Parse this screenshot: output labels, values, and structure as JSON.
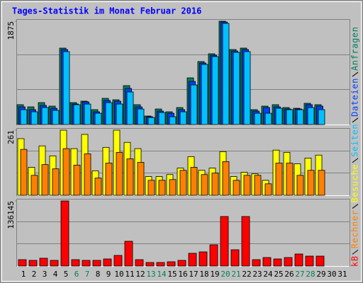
{
  "chart_data": [
    {
      "type": "bar",
      "title": "Tages-Statistik im Monat Februar 2016",
      "categories": [
        "1",
        "2",
        "3",
        "4",
        "5",
        "6",
        "7",
        "8",
        "9",
        "10",
        "11",
        "12",
        "13",
        "14",
        "15",
        "16",
        "17",
        "18",
        "19",
        "20",
        "21",
        "22",
        "23",
        "24",
        "25",
        "26",
        "27",
        "28",
        "29",
        "30",
        "31"
      ],
      "category_colors": [
        "#000000",
        "#000000",
        "#000000",
        "#000000",
        "#000000",
        "#00805c",
        "#00805c",
        "#000000",
        "#000000",
        "#000000",
        "#000000",
        "#000000",
        "#00805c",
        "#00805c",
        "#000000",
        "#000000",
        "#000000",
        "#000000",
        "#000000",
        "#00805c",
        "#00805c",
        "#000000",
        "#000000",
        "#000000",
        "#000000",
        "#000000",
        "#00805c",
        "#00805c",
        "#000000",
        "#000000",
        "#000000"
      ],
      "ylim": [
        0,
        1875
      ],
      "yticks": [
        1875
      ],
      "series": [
        {
          "name": "Anfragen",
          "color": "#00805c",
          "values": [
            360,
            321,
            398,
            334,
            1387,
            398,
            424,
            270,
            475,
            449,
            706,
            360,
            154,
            282,
            231,
            308,
            847,
            1143,
            1284,
            1875,
            1361,
            1387,
            270,
            334,
            360,
            308,
            295,
            385,
            360,
            0,
            0
          ]
        },
        {
          "name": "Dateien",
          "color": "#0040ff",
          "values": [
            321,
            270,
            347,
            295,
            1361,
            372,
            411,
            231,
            437,
            424,
            655,
            321,
            141,
            244,
            205,
            270,
            783,
            1117,
            1258,
            1862,
            1335,
            1361,
            244,
            308,
            321,
            282,
            282,
            360,
            334,
            0,
            0
          ]
        },
        {
          "name": "Seiten",
          "color": "#00c0ff",
          "values": [
            270,
            231,
            308,
            257,
            1323,
            360,
            372,
            205,
            398,
            372,
            591,
            282,
            128,
            218,
            141,
            231,
            719,
            1091,
            1233,
            1836,
            1310,
            1323,
            205,
            205,
            295,
            270,
            270,
            308,
            270,
            0,
            0
          ]
        }
      ]
    },
    {
      "type": "bar",
      "ylim": [
        0,
        261
      ],
      "yticks": [
        261
      ],
      "series": [
        {
          "name": "Besuche",
          "color": "#ffff00",
          "values": [
            227,
            112,
            198,
            158,
            261,
            187,
            244,
            98,
            192,
            261,
            212,
            187,
            75,
            75,
            83,
            109,
            155,
            100,
            109,
            175,
            75,
            92,
            86,
            60,
            181,
            172,
            126,
            149,
            161,
            0,
            0
          ]
        },
        {
          "name": "Rechner",
          "color": "#ff8000",
          "values": [
            184,
            80,
            123,
            106,
            187,
            121,
            166,
            69,
            129,
            172,
            146,
            132,
            60,
            60,
            63,
            100,
            112,
            83,
            89,
            135,
            60,
            80,
            80,
            46,
            129,
            129,
            80,
            100,
            100,
            0,
            0
          ]
        }
      ]
    },
    {
      "type": "bar",
      "ylim": [
        0,
        136145
      ],
      "yticks": [
        136145
      ],
      "series": [
        {
          "name": "kB",
          "color": "#ff0000",
          "values": [
            13320,
            11840,
            16280,
            11840,
            136145,
            13320,
            11840,
            11840,
            14800,
            22200,
            51800,
            13320,
            7400,
            7400,
            8880,
            11840,
            26640,
            29600,
            44400,
            103600,
            34040,
            103600,
            13320,
            17760,
            14800,
            17760,
            25160,
            20720,
            20720,
            0,
            0
          ]
        }
      ]
    }
  ]
}
